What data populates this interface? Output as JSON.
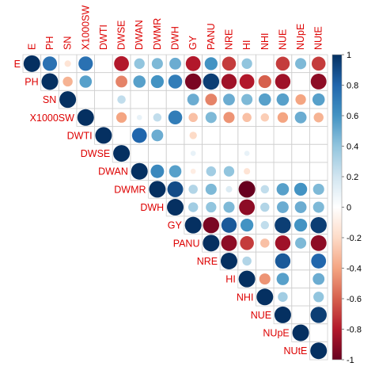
{
  "chart_data": {
    "type": "heatmap",
    "style": "upper-triangle correlation matrix, circle size and color proportional to correlation",
    "variables": [
      "E",
      "PH",
      "SN",
      "X1000SW",
      "DWTI",
      "DWSE",
      "DWAN",
      "DWMR",
      "DWH",
      "GY",
      "PANU",
      "NRE",
      "HI",
      "NHI",
      "NUE",
      "NUpE",
      "NUtE"
    ],
    "matrix": [
      [
        1.0,
        0.75,
        -0.15,
        0.75,
        null,
        -0.8,
        0.4,
        0.45,
        0.5,
        -0.8,
        0.6,
        -0.7,
        0.4,
        null,
        -0.7,
        0.45,
        -0.7
      ],
      [
        null,
        1.0,
        -0.35,
        0.55,
        null,
        -0.5,
        0.55,
        0.6,
        0.7,
        -0.95,
        0.95,
        -0.85,
        -0.8,
        -0.6,
        -0.85,
        null,
        -0.9
      ],
      [
        null,
        null,
        1.0,
        null,
        null,
        0.25,
        null,
        null,
        null,
        0.5,
        -0.5,
        0.5,
        0.45,
        0.55,
        0.55,
        -0.4,
        0.55
      ],
      [
        null,
        null,
        null,
        1.0,
        null,
        -0.4,
        0.1,
        0.25,
        0.7,
        -0.3,
        0.45,
        -0.45,
        -0.3,
        -0.25,
        -0.4,
        0.5,
        -0.35
      ],
      [
        null,
        null,
        null,
        null,
        1.0,
        null,
        0.8,
        0.5,
        null,
        -0.2,
        null,
        null,
        null,
        null,
        null,
        null,
        null
      ],
      [
        null,
        null,
        null,
        null,
        null,
        1.0,
        null,
        null,
        null,
        0.1,
        null,
        null,
        0.1,
        null,
        null,
        null,
        null
      ],
      [
        null,
        null,
        null,
        null,
        null,
        null,
        1.0,
        0.65,
        0.55,
        -0.1,
        0.35,
        0.4,
        -0.15,
        null,
        null,
        null,
        null
      ],
      [
        null,
        null,
        null,
        null,
        null,
        null,
        null,
        1.0,
        0.9,
        0.3,
        0.45,
        0.15,
        -1.0,
        0.25,
        0.55,
        0.6,
        0.45
      ],
      [
        null,
        null,
        null,
        null,
        null,
        null,
        null,
        null,
        1.0,
        0.35,
        0.4,
        0.45,
        -0.9,
        0.3,
        0.5,
        0.5,
        0.45
      ],
      [
        null,
        null,
        null,
        null,
        null,
        null,
        null,
        null,
        null,
        1.0,
        -0.95,
        0.85,
        0.6,
        0.25,
        0.95,
        0.6,
        0.95
      ],
      [
        null,
        null,
        null,
        null,
        null,
        null,
        null,
        null,
        null,
        null,
        1.0,
        -0.9,
        -0.7,
        -0.3,
        -0.85,
        0.45,
        -0.9
      ],
      [
        null,
        null,
        null,
        null,
        null,
        null,
        null,
        null,
        null,
        null,
        null,
        1.0,
        0.3,
        null,
        0.85,
        null,
        0.8
      ],
      [
        null,
        null,
        null,
        null,
        null,
        null,
        null,
        null,
        null,
        null,
        null,
        null,
        1.0,
        -0.45,
        0.55,
        null,
        0.5
      ],
      [
        null,
        null,
        null,
        null,
        null,
        null,
        null,
        null,
        null,
        null,
        null,
        null,
        null,
        1.0,
        0.35,
        null,
        0.4
      ],
      [
        null,
        null,
        null,
        null,
        null,
        null,
        null,
        null,
        null,
        null,
        null,
        null,
        null,
        null,
        1.0,
        null,
        0.95
      ],
      [
        null,
        null,
        null,
        null,
        null,
        null,
        null,
        null,
        null,
        null,
        null,
        null,
        null,
        null,
        null,
        1.0,
        null
      ],
      [
        null,
        null,
        null,
        null,
        null,
        null,
        null,
        null,
        null,
        null,
        null,
        null,
        null,
        null,
        null,
        null,
        1.0
      ]
    ],
    "colorbar": {
      "ticks": [
        "1",
        "0.8",
        "0.6",
        "0.4",
        "0.2",
        "0",
        "-0.2",
        "-0.4",
        "-0.6",
        "-0.8",
        "-1"
      ],
      "range": [
        -1,
        1
      ],
      "colors": {
        "negative": "#67001f",
        "neutral": "#ffffff",
        "positive": "#053061"
      }
    },
    "grid": true,
    "legend_position": "right",
    "label_color": "#dd0000"
  }
}
